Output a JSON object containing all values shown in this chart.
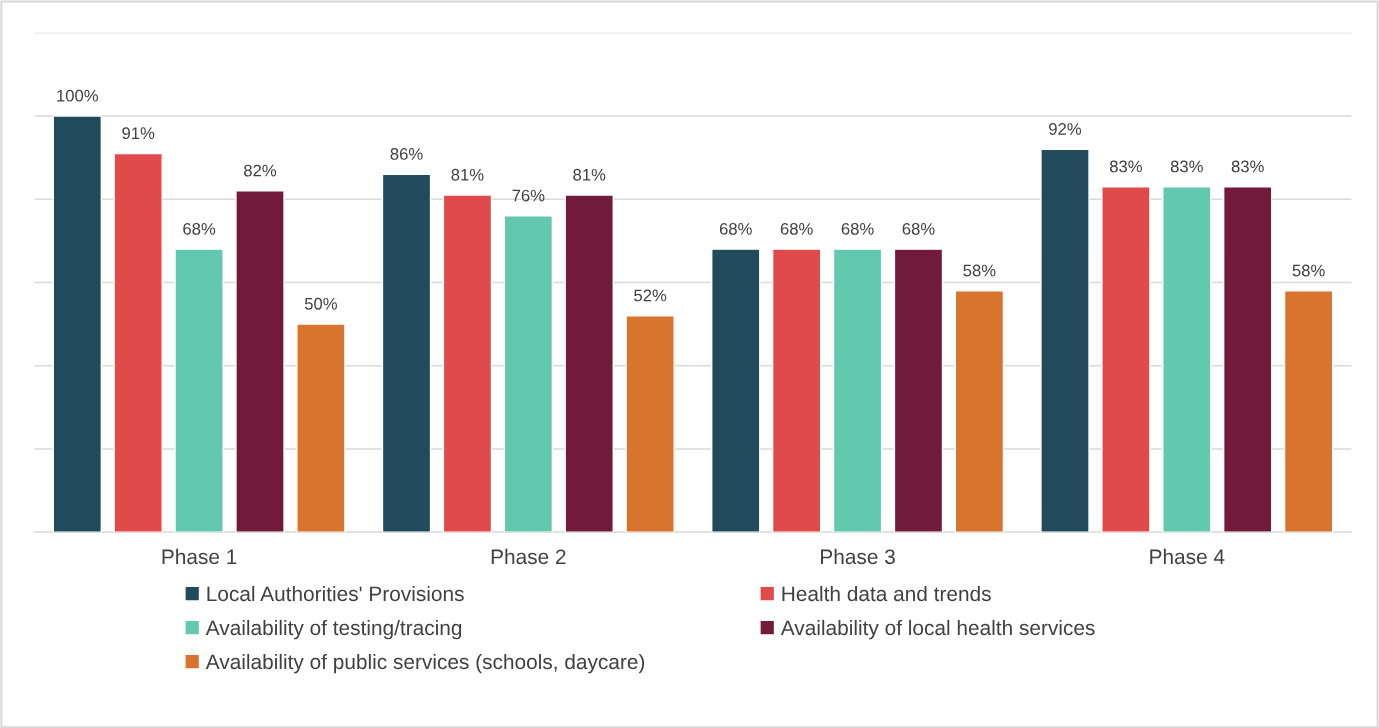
{
  "chart_data": {
    "type": "bar",
    "categories": [
      "Phase 1",
      "Phase 2",
      "Phase 3",
      "Phase 4"
    ],
    "series": [
      {
        "name": "Local Authorities' Provisions",
        "color": "#214b5c",
        "values": [
          100,
          86,
          68,
          92
        ],
        "value_labels": [
          "100%",
          "86%",
          "68%",
          "92%"
        ]
      },
      {
        "name": "Health data and trends",
        "color": "#e04a4a",
        "values": [
          91,
          81,
          68,
          83
        ],
        "value_labels": [
          "91%",
          "81%",
          "68%",
          "83%"
        ]
      },
      {
        "name": "Availability of testing/tracing",
        "color": "#62c9ae",
        "values": [
          68,
          76,
          68,
          83
        ],
        "value_labels": [
          "68%",
          "76%",
          "68%",
          "83%"
        ]
      },
      {
        "name": "Availability of local health services",
        "color": "#721a3c",
        "values": [
          82,
          81,
          68,
          83
        ],
        "value_labels": [
          "82%",
          "81%",
          "68%",
          "83%"
        ]
      },
      {
        "name": "Availability of public services (schools, daycare)",
        "color": "#d9742f",
        "values": [
          50,
          52,
          58,
          58
        ],
        "value_labels": [
          "50%",
          "52%",
          "58%",
          "58%"
        ]
      }
    ],
    "ylim": [
      0,
      120
    ],
    "yticks": [
      {
        "value": 0,
        "label": null
      },
      {
        "value": 20,
        "label": null
      },
      {
        "value": 40,
        "label": null
      },
      {
        "value": 60,
        "label": null
      },
      {
        "value": 80,
        "label": null
      },
      {
        "value": 100,
        "label": null
      },
      {
        "value": 120,
        "label": null
      }
    ],
    "grid": "y",
    "legend": "bottom",
    "tick_labels": "x"
  }
}
